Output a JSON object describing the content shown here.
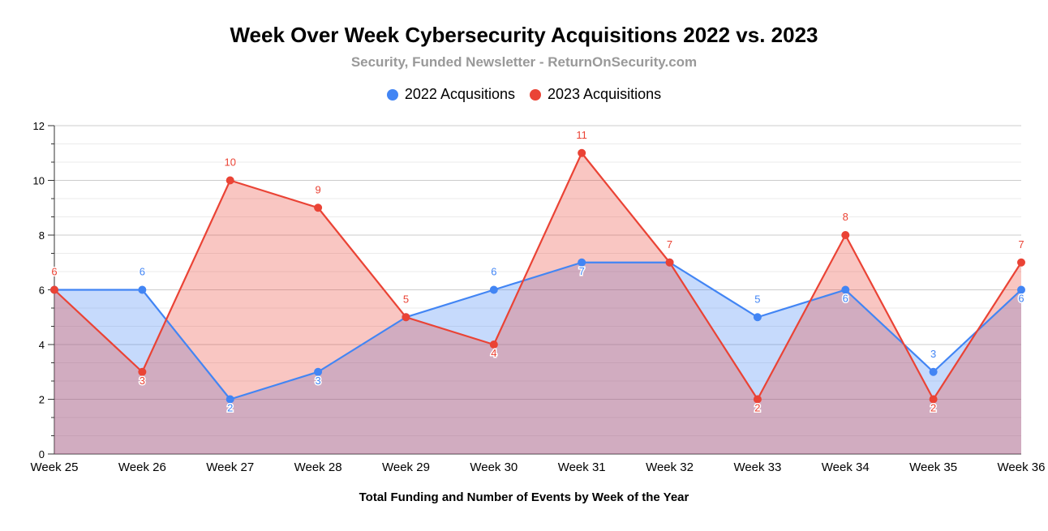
{
  "chart_data": {
    "type": "area",
    "title": "Week Over Week Cybersecurity Acquisitions 2022 vs. 2023",
    "subtitle": "Security, Funded Newsletter - ReturnOnSecurity.com",
    "xlabel": "Total Funding and Number of Events by Week of the Year",
    "ylabel": "",
    "ylim": [
      0,
      12
    ],
    "yticks": [
      "0",
      "2",
      "4",
      "6",
      "8",
      "10",
      "12"
    ],
    "legend_position": "top-center",
    "categories": [
      "Week 25",
      "Week 26",
      "Week 27",
      "Week 28",
      "Week 29",
      "Week 30",
      "Week 31",
      "Week 32",
      "Week 33",
      "Week 34",
      "Week 35",
      "Week 36"
    ],
    "series": [
      {
        "name": "2022 Acqusitions",
        "color": "#4285f4",
        "fill": "#a9c7f8",
        "values": [
          6,
          6,
          2,
          3,
          5,
          6,
          7,
          7,
          5,
          6,
          3,
          6
        ]
      },
      {
        "name": "2023 Acquisitions",
        "color": "#ea4335",
        "fill": "#f4b0aa",
        "values": [
          6,
          3,
          10,
          9,
          5,
          4,
          11,
          7,
          2,
          8,
          2,
          7
        ]
      }
    ]
  }
}
